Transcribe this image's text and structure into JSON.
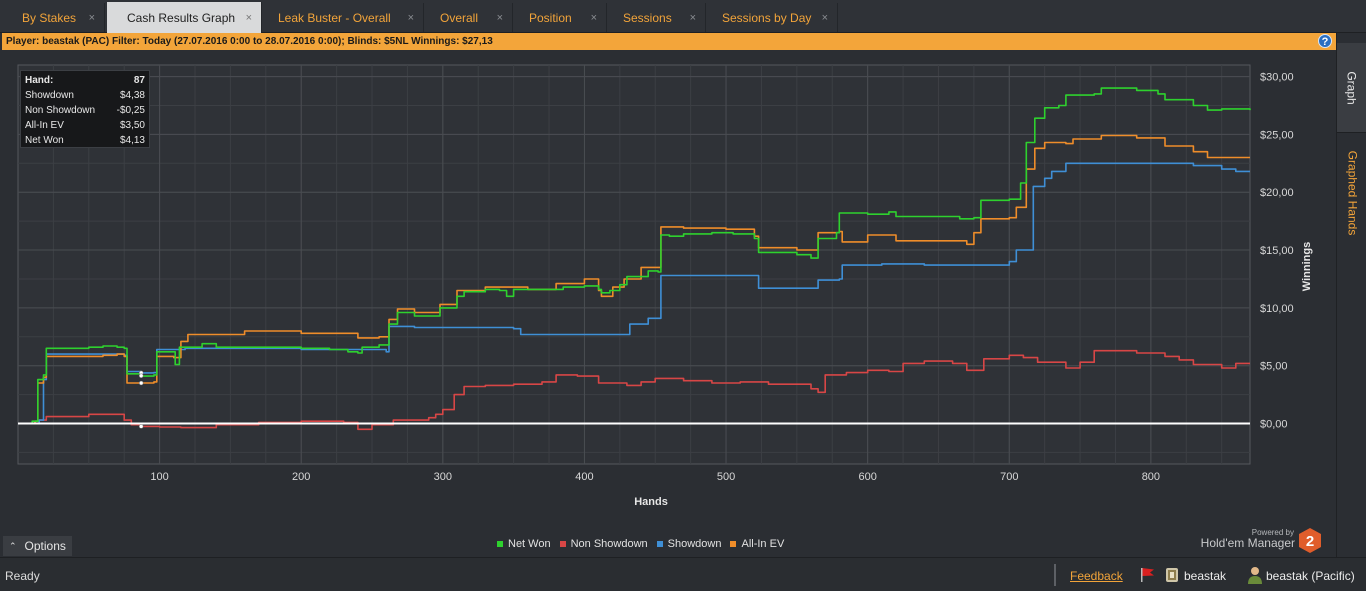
{
  "tabs": [
    {
      "label": "By Stakes",
      "active": false
    },
    {
      "label": "Cash Results Graph",
      "active": true
    },
    {
      "label": "Leak Buster - Overall",
      "active": false
    },
    {
      "label": "Overall",
      "active": false
    },
    {
      "label": "Position",
      "active": false
    },
    {
      "label": "Sessions",
      "active": false
    },
    {
      "label": "Sessions by Day",
      "active": false
    }
  ],
  "tab_close_glyph": "×",
  "filter": {
    "text": "Player:  beastak (PAC)  Filter:  Today (27.07.2016 0:00 to 28.07.2016 0:00); Blinds: $5NL  Winnings:  $27,13",
    "help_glyph": "?"
  },
  "side_tabs": {
    "graph": "Graph",
    "graphed_hands": "Graphed Hands"
  },
  "hand_box": {
    "hand_label": "Hand:",
    "hand_value": "87",
    "rows": [
      {
        "label": "Showdown",
        "value": "$4,38"
      },
      {
        "label": "Non Showdown",
        "value": "-$0,25"
      },
      {
        "label": "All-In EV",
        "value": "$3,50"
      },
      {
        "label": "Net Won",
        "value": "$4,13"
      }
    ]
  },
  "chart_data": {
    "type": "line",
    "xlabel": "Hands",
    "ylabel": "Winnings",
    "xlim": [
      0,
      870
    ],
    "ylim": [
      -3.5,
      31
    ],
    "x_ticks": [
      100,
      200,
      300,
      400,
      500,
      600,
      700,
      800
    ],
    "x_tick_labels": [
      "100",
      "200",
      "300",
      "400",
      "500",
      "600",
      "700",
      "800"
    ],
    "y_ticks": [
      0,
      5,
      10,
      15,
      20,
      25,
      30
    ],
    "y_tick_labels": [
      "$0,00",
      "$5,00",
      "$10,00",
      "$15,00",
      "$20,00",
      "$25,00",
      "$30,00"
    ],
    "y_axis_side": "right",
    "grid": true,
    "legend_position": "bottom-center",
    "zero_line": true,
    "marker_hand": 87,
    "series": [
      {
        "name": "Net Won",
        "color": "#2ed12e",
        "points": [
          [
            0,
            0
          ],
          [
            10,
            0.2
          ],
          [
            14,
            3.8
          ],
          [
            18,
            4.2
          ],
          [
            20,
            6.5
          ],
          [
            40,
            6.5
          ],
          [
            50,
            6.6
          ],
          [
            60,
            6.7
          ],
          [
            70,
            6.6
          ],
          [
            75,
            6.5
          ],
          [
            77,
            4.3
          ],
          [
            87,
            4.1
          ],
          [
            96,
            4.2
          ],
          [
            98,
            6.2
          ],
          [
            110,
            6.2
          ],
          [
            111,
            5.1
          ],
          [
            114,
            6.6
          ],
          [
            130,
            6.9
          ],
          [
            140,
            6.6
          ],
          [
            160,
            6.6
          ],
          [
            200,
            6.5
          ],
          [
            220,
            6.4
          ],
          [
            233,
            6.2
          ],
          [
            240,
            6.1
          ],
          [
            243,
            6.6
          ],
          [
            255,
            6.8
          ],
          [
            262,
            8.6
          ],
          [
            268,
            9.6
          ],
          [
            280,
            9.3
          ],
          [
            295,
            9.3
          ],
          [
            298,
            10.0
          ],
          [
            310,
            11.0
          ],
          [
            315,
            11.4
          ],
          [
            330,
            11.6
          ],
          [
            340,
            11.5
          ],
          [
            345,
            11.0
          ],
          [
            350,
            11.6
          ],
          [
            370,
            11.6
          ],
          [
            385,
            11.8
          ],
          [
            400,
            11.9
          ],
          [
            410,
            11.6
          ],
          [
            412,
            11.3
          ],
          [
            418,
            11.5
          ],
          [
            425,
            12.0
          ],
          [
            430,
            12.7
          ],
          [
            445,
            13.2
          ],
          [
            452,
            13.1
          ],
          [
            454,
            16.3
          ],
          [
            460,
            16.2
          ],
          [
            470,
            16.4
          ],
          [
            490,
            16.5
          ],
          [
            505,
            16.4
          ],
          [
            520,
            16.0
          ],
          [
            523,
            14.8
          ],
          [
            550,
            14.6
          ],
          [
            560,
            14.3
          ],
          [
            565,
            16.0
          ],
          [
            578,
            16.5
          ],
          [
            580,
            18.2
          ],
          [
            600,
            18.1
          ],
          [
            615,
            18.3
          ],
          [
            620,
            17.9
          ],
          [
            660,
            17.9
          ],
          [
            665,
            17.7
          ],
          [
            675,
            17.8
          ],
          [
            680,
            19.3
          ],
          [
            700,
            19.4
          ],
          [
            708,
            20.8
          ],
          [
            712,
            24.3
          ],
          [
            718,
            26.4
          ],
          [
            725,
            27.3
          ],
          [
            735,
            27.5
          ],
          [
            740,
            28.4
          ],
          [
            760,
            28.5
          ],
          [
            765,
            29.0
          ],
          [
            790,
            28.8
          ],
          [
            805,
            28.5
          ],
          [
            810,
            28.0
          ],
          [
            830,
            27.5
          ],
          [
            840,
            27.1
          ],
          [
            850,
            27.2
          ],
          [
            870,
            27.1
          ]
        ]
      },
      {
        "name": "Non Showdown",
        "color": "#d84646",
        "points": [
          [
            0,
            0
          ],
          [
            15,
            0.3
          ],
          [
            20,
            0.6
          ],
          [
            45,
            0.6
          ],
          [
            50,
            0.8
          ],
          [
            70,
            0.8
          ],
          [
            75,
            0.3
          ],
          [
            80,
            -0.1
          ],
          [
            87,
            -0.25
          ],
          [
            100,
            -0.3
          ],
          [
            115,
            -0.35
          ],
          [
            140,
            -0.1
          ],
          [
            170,
            0.1
          ],
          [
            200,
            0.2
          ],
          [
            230,
            0.1
          ],
          [
            240,
            -0.5
          ],
          [
            250,
            -0.1
          ],
          [
            265,
            0.3
          ],
          [
            290,
            0.5
          ],
          [
            295,
            0.8
          ],
          [
            300,
            1.2
          ],
          [
            308,
            2.5
          ],
          [
            315,
            3.2
          ],
          [
            330,
            3.3
          ],
          [
            350,
            3.4
          ],
          [
            370,
            3.6
          ],
          [
            380,
            4.2
          ],
          [
            395,
            4.1
          ],
          [
            410,
            3.5
          ],
          [
            430,
            3.3
          ],
          [
            440,
            3.6
          ],
          [
            450,
            3.9
          ],
          [
            470,
            3.7
          ],
          [
            490,
            3.5
          ],
          [
            510,
            3.6
          ],
          [
            530,
            3.4
          ],
          [
            560,
            3.0
          ],
          [
            565,
            2.7
          ],
          [
            570,
            4.2
          ],
          [
            585,
            4.4
          ],
          [
            600,
            4.6
          ],
          [
            615,
            4.5
          ],
          [
            625,
            5.2
          ],
          [
            640,
            5.4
          ],
          [
            660,
            5.2
          ],
          [
            670,
            4.6
          ],
          [
            682,
            5.6
          ],
          [
            700,
            5.9
          ],
          [
            710,
            5.7
          ],
          [
            720,
            5.3
          ],
          [
            740,
            4.8
          ],
          [
            750,
            5.3
          ],
          [
            760,
            6.3
          ],
          [
            775,
            6.3
          ],
          [
            790,
            6.1
          ],
          [
            810,
            5.8
          ],
          [
            820,
            5.5
          ],
          [
            830,
            5.1
          ],
          [
            850,
            4.8
          ],
          [
            860,
            5.2
          ],
          [
            870,
            5.2
          ]
        ]
      },
      {
        "name": "Showdown",
        "color": "#3f8fd6",
        "points": [
          [
            0,
            0
          ],
          [
            15,
            0.3
          ],
          [
            18,
            3.8
          ],
          [
            20,
            6.0
          ],
          [
            70,
            6.0
          ],
          [
            75,
            5.9
          ],
          [
            77,
            4.5
          ],
          [
            87,
            4.38
          ],
          [
            96,
            4.4
          ],
          [
            98,
            6.4
          ],
          [
            115,
            6.4
          ],
          [
            118,
            6.5
          ],
          [
            200,
            6.4
          ],
          [
            260,
            6.2
          ],
          [
            262,
            8.4
          ],
          [
            280,
            8.3
          ],
          [
            320,
            8.3
          ],
          [
            350,
            8.2
          ],
          [
            355,
            7.7
          ],
          [
            400,
            7.7
          ],
          [
            430,
            7.7
          ],
          [
            432,
            8.6
          ],
          [
            445,
            9.1
          ],
          [
            452,
            9.1
          ],
          [
            454,
            12.8
          ],
          [
            520,
            12.8
          ],
          [
            523,
            11.7
          ],
          [
            560,
            11.7
          ],
          [
            565,
            12.4
          ],
          [
            580,
            12.5
          ],
          [
            582,
            13.7
          ],
          [
            610,
            13.8
          ],
          [
            640,
            13.7
          ],
          [
            680,
            13.7
          ],
          [
            700,
            14.0
          ],
          [
            705,
            15.0
          ],
          [
            715,
            15.0
          ],
          [
            717,
            20.5
          ],
          [
            725,
            21.2
          ],
          [
            730,
            21.8
          ],
          [
            740,
            22.5
          ],
          [
            810,
            22.5
          ],
          [
            830,
            22.3
          ],
          [
            850,
            22.0
          ],
          [
            860,
            21.8
          ],
          [
            870,
            21.8
          ]
        ]
      },
      {
        "name": "All-In EV",
        "color": "#ef8d2a",
        "points": [
          [
            0,
            0
          ],
          [
            12,
            0.2
          ],
          [
            14,
            3.5
          ],
          [
            18,
            4.0
          ],
          [
            20,
            5.8
          ],
          [
            60,
            5.9
          ],
          [
            70,
            6.0
          ],
          [
            75,
            5.8
          ],
          [
            77,
            3.5
          ],
          [
            87,
            3.5
          ],
          [
            96,
            3.6
          ],
          [
            98,
            5.8
          ],
          [
            110,
            5.7
          ],
          [
            115,
            7.1
          ],
          [
            120,
            7.7
          ],
          [
            150,
            7.7
          ],
          [
            160,
            8.0
          ],
          [
            200,
            7.8
          ],
          [
            240,
            7.4
          ],
          [
            255,
            7.5
          ],
          [
            262,
            9.0
          ],
          [
            268,
            9.9
          ],
          [
            280,
            9.6
          ],
          [
            295,
            9.6
          ],
          [
            298,
            10.3
          ],
          [
            310,
            11.5
          ],
          [
            330,
            11.8
          ],
          [
            350,
            11.8
          ],
          [
            360,
            11.6
          ],
          [
            380,
            12.1
          ],
          [
            400,
            12.5
          ],
          [
            410,
            11.5
          ],
          [
            412,
            11.0
          ],
          [
            420,
            11.8
          ],
          [
            428,
            12.5
          ],
          [
            440,
            13.5
          ],
          [
            452,
            13.5
          ],
          [
            454,
            17.0
          ],
          [
            470,
            16.9
          ],
          [
            500,
            16.8
          ],
          [
            520,
            16.2
          ],
          [
            523,
            15.2
          ],
          [
            550,
            15.0
          ],
          [
            565,
            16.5
          ],
          [
            580,
            16.6
          ],
          [
            582,
            15.7
          ],
          [
            600,
            16.3
          ],
          [
            620,
            15.8
          ],
          [
            660,
            15.8
          ],
          [
            670,
            15.5
          ],
          [
            675,
            16.5
          ],
          [
            680,
            17.7
          ],
          [
            700,
            17.8
          ],
          [
            705,
            18.7
          ],
          [
            712,
            22.0
          ],
          [
            718,
            23.8
          ],
          [
            725,
            24.3
          ],
          [
            740,
            24.2
          ],
          [
            745,
            24.6
          ],
          [
            765,
            24.9
          ],
          [
            790,
            24.7
          ],
          [
            810,
            24.0
          ],
          [
            830,
            23.5
          ],
          [
            840,
            23.0
          ],
          [
            870,
            23.0
          ]
        ]
      }
    ]
  },
  "options": {
    "label": "Options",
    "chevron": "⌃"
  },
  "legend": [
    {
      "name": "Net Won",
      "color": "#2ed12e"
    },
    {
      "name": "Non Showdown",
      "color": "#d84646"
    },
    {
      "name": "Showdown",
      "color": "#3f8fd6"
    },
    {
      "name": "All-In EV",
      "color": "#ef8d2a"
    }
  ],
  "powered_by": {
    "small": "Powered by",
    "name": "Hold'em Manager",
    "badge": "2"
  },
  "status": {
    "text": "Ready",
    "feedback": "Feedback",
    "player": "beastak",
    "player_site": "beastak (Pacific)"
  }
}
